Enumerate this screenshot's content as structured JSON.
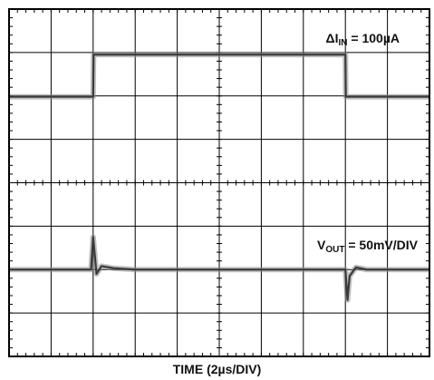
{
  "chart_data": {
    "type": "line",
    "xlabel": "TIME (2µs/DIV)",
    "x_divisions": 10,
    "y_divisions": 8,
    "grid": true,
    "series": [
      {
        "name": "ΔIIN = 100µA",
        "label": {
          "prefix": "ΔI",
          "sub": "IN",
          "suffix": " = 100µA"
        },
        "units_per_div": "100µA",
        "x_div": [
          0,
          2,
          2.01,
          8.0,
          8.01,
          10
        ],
        "y_div": [
          5.98,
          5.98,
          6.95,
          6.95,
          5.98,
          5.98
        ]
      },
      {
        "name": "VOUT = 50mV/DIV",
        "label": {
          "prefix": "V",
          "sub": "OUT",
          "suffix": " = 50mV/DIV"
        },
        "units_per_div": "50mV",
        "x_div": [
          0,
          1.95,
          2.0,
          2.08,
          2.2,
          2.5,
          3.0,
          8.0,
          8.05,
          8.1,
          8.25,
          8.5,
          10
        ],
        "y_div": [
          2.0,
          2.0,
          2.75,
          1.9,
          2.08,
          2.03,
          2.0,
          2.0,
          1.3,
          1.85,
          2.05,
          2.0,
          2.0
        ]
      }
    ]
  }
}
